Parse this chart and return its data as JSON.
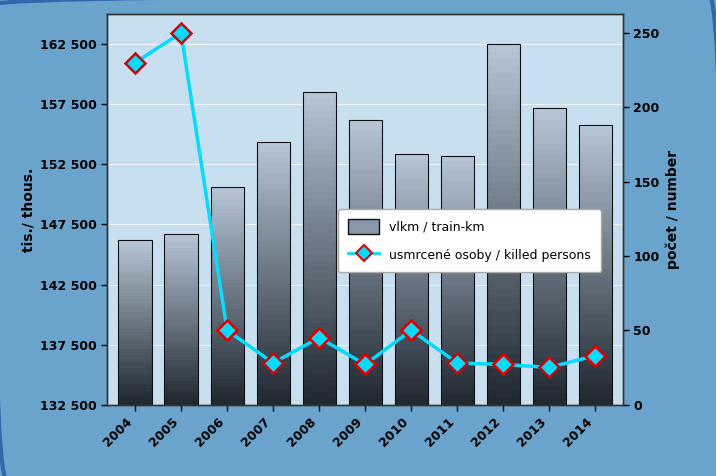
{
  "years": [
    2004,
    2005,
    2006,
    2007,
    2008,
    2009,
    2010,
    2011,
    2012,
    2013,
    2014
  ],
  "bar_values": [
    146200,
    146700,
    150600,
    154400,
    158500,
    156200,
    153400,
    153200,
    162500,
    157200,
    155800
  ],
  "line_values": [
    230,
    250,
    50,
    28,
    45,
    27,
    50,
    28,
    27,
    25,
    33
  ],
  "bar_color_top": "#b8c8d8",
  "bar_color_mid": "#8898a8",
  "bar_color_bot": "#202830",
  "bar_edge_color": "#111118",
  "line_color": "#00ddff",
  "marker_face_color": "#00ddff",
  "marker_edge_color": "#dd0000",
  "ylabel_left": "tis./ thous.",
  "ylabel_right": "počet / number",
  "ylim_left": [
    132500,
    165000
  ],
  "ylim_right": [
    0,
    262.5
  ],
  "yticks_left": [
    132500,
    137500,
    142500,
    147500,
    152500,
    157500,
    162500
  ],
  "ytick_labels_left": [
    "132 500",
    "137 500",
    "142 500",
    "147 500",
    "152 500",
    "157 500",
    "162 500"
  ],
  "yticks_right": [
    0,
    50,
    100,
    150,
    200,
    250
  ],
  "background_outer": "#6aA4CC",
  "background_inner": "#c8dff0",
  "legend_bar_label": "vlkm / train-km",
  "legend_line_label": "usmrcené osoby / killed persons"
}
